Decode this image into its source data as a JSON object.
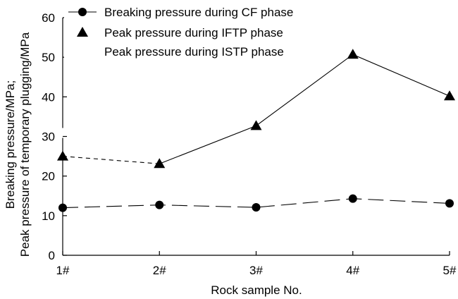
{
  "chart_data": {
    "type": "line",
    "categories": [
      "1#",
      "2#",
      "3#",
      "4#",
      "5#"
    ],
    "xlabel": "Rock sample No.",
    "ylabel_lines": [
      "Breaking pressure/MPa;",
      "Peak pressure of temporary plugging/MPa"
    ],
    "ylim": [
      0,
      60
    ],
    "yticks": [
      0,
      10,
      20,
      30,
      40,
      50,
      60
    ],
    "grid": false,
    "legend_position": "top-left",
    "series": [
      {
        "name": "Breaking pressure during CF phase",
        "marker": "circle",
        "line_style": "long-dash",
        "values": [
          12.0,
          12.7,
          12.1,
          14.3,
          13.1
        ]
      },
      {
        "name": "Peak pressure during IFTP phase",
        "marker": "triangle",
        "line_style": "short-dash",
        "values": [
          25.0,
          23.1,
          32.7,
          50.7,
          40.2
        ]
      },
      {
        "name": "Peak pressure during ISTP phase",
        "marker": "none",
        "line_style": "solid",
        "values": [
          25.0,
          23.1,
          32.7,
          50.7,
          40.2
        ]
      }
    ]
  }
}
